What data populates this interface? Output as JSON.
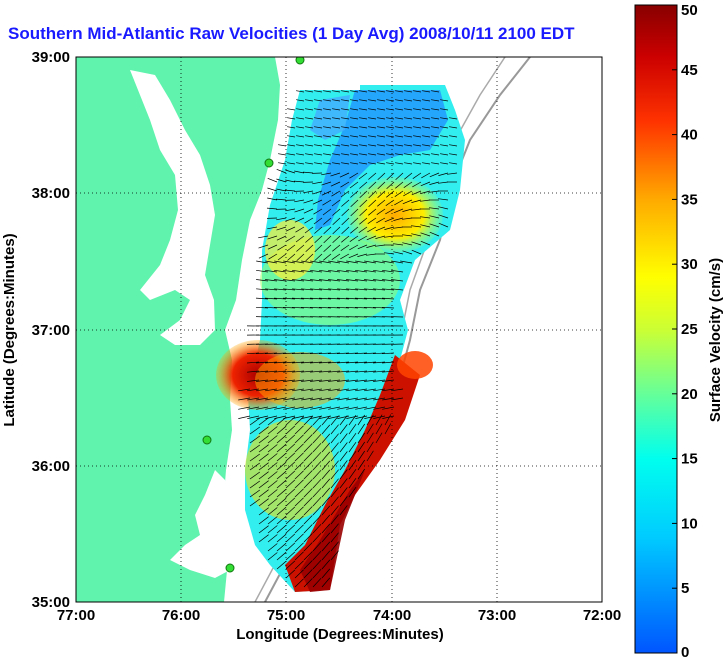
{
  "title": "Southern Mid-Atlantic Raw Velocities (1 Day Avg) 2008/10/11 2100 EDT",
  "map": {
    "xlabel": "Longitude (Degrees:Minutes)",
    "ylabel": "Latitude (Degrees:Minutes)",
    "x_ticks": [
      "77:00",
      "76:00",
      "75:00",
      "74:00",
      "73:00",
      "72:00"
    ],
    "y_ticks": [
      "39:00",
      "38:00",
      "37:00",
      "36:00",
      "35:00"
    ],
    "grid": "dotted",
    "colors": {
      "land": "#5ff3ad",
      "water": "#ffffff",
      "vectors": "#000000",
      "stations": "#33dd33",
      "bathymetry": "#999999"
    }
  },
  "colorbar": {
    "label": "Surface Velocity (cm/s)",
    "ticks": [
      "50",
      "45",
      "40",
      "35",
      "30",
      "25",
      "20",
      "15",
      "10",
      "5",
      "0"
    ],
    "range": [
      0,
      50
    ],
    "colormap": "jet"
  }
}
